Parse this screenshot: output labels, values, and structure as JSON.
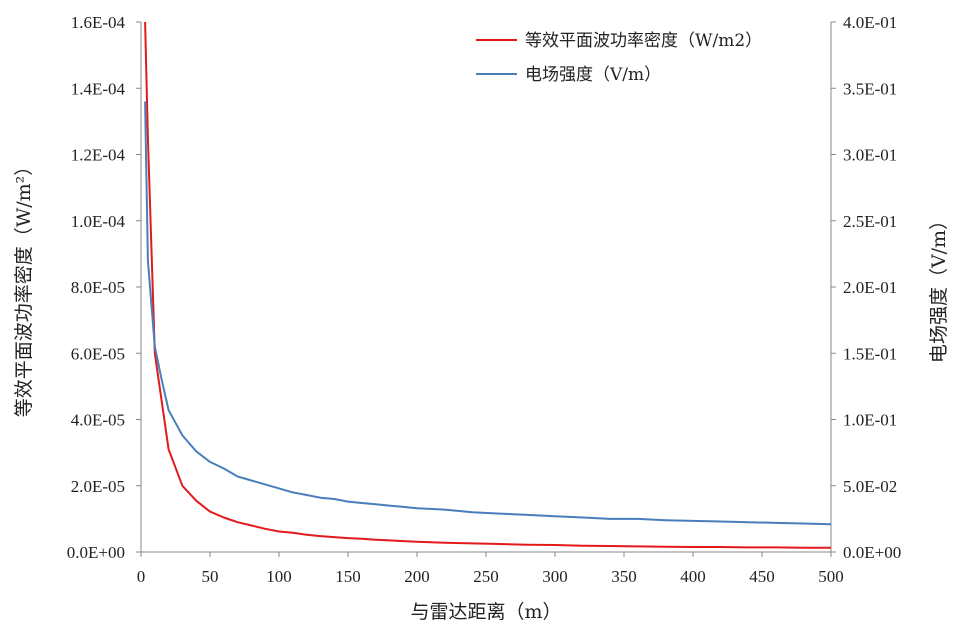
{
  "chart_data": {
    "type": "line",
    "xlabel": "与雷达距离（m）",
    "ylabel_left": "等效平面波功率密度（W/m²）",
    "ylabel_right": "电场强度（V/m）",
    "xlim": [
      0,
      500
    ],
    "ylim_left": [
      0,
      0.00016
    ],
    "ylim_right": [
      0,
      0.4
    ],
    "x_ticks": [
      0,
      50,
      100,
      150,
      200,
      250,
      300,
      350,
      400,
      450,
      500
    ],
    "x_tick_labels": [
      "0",
      "50",
      "100",
      "150",
      "200",
      "250",
      "300",
      "350",
      "400",
      "450",
      "500"
    ],
    "y_left_ticks": [
      0,
      2e-05,
      4e-05,
      6e-05,
      8e-05,
      0.0001,
      0.00012,
      0.00014,
      0.00016
    ],
    "y_left_tick_labels": [
      "0.0E+00",
      "2.0E-05",
      "4.0E-05",
      "6.0E-05",
      "8.0E-05",
      "1.0E-04",
      "1.2E-04",
      "1.4E-04",
      "1.6E-04"
    ],
    "y_right_ticks": [
      0,
      0.05,
      0.1,
      0.15,
      0.2,
      0.25,
      0.3,
      0.35,
      0.4
    ],
    "y_right_tick_labels": [
      "0.0E+00",
      "5.0E-02",
      "1.0E-01",
      "1.5E-01",
      "2.0E-01",
      "2.5E-01",
      "3.0E-01",
      "3.5E-01",
      "4.0E-01"
    ],
    "grid": false,
    "legend_position": "top-right",
    "series": [
      {
        "name": "等效平面波功率密度（W/m2）",
        "axis": "left",
        "color": "#e31a1c",
        "x": [
          3,
          5,
          10,
          20,
          30,
          40,
          50,
          60,
          70,
          80,
          90,
          100,
          110,
          120,
          130,
          140,
          150,
          160,
          170,
          180,
          190,
          200,
          220,
          240,
          260,
          280,
          300,
          320,
          340,
          360,
          380,
          400,
          420,
          440,
          460,
          480,
          500
        ],
        "values": [
          0.00016,
          0.000125,
          6e-05,
          3.1e-05,
          2e-05,
          1.55e-05,
          1.22e-05,
          1.04e-05,
          9e-06,
          8e-06,
          7e-06,
          6.2e-06,
          5.8e-06,
          5.2e-06,
          4.8e-06,
          4.5e-06,
          4.2e-06,
          4e-06,
          3.7e-06,
          3.5e-06,
          3.3e-06,
          3.1e-06,
          2.8e-06,
          2.6e-06,
          2.4e-06,
          2.2e-06,
          2.1e-06,
          1.9e-06,
          1.8e-06,
          1.7e-06,
          1.6e-06,
          1.5e-06,
          1.5e-06,
          1.4e-06,
          1.4e-06,
          1.3e-06,
          1.3e-06
        ]
      },
      {
        "name": "电场强度（V/m）",
        "axis": "right",
        "color": "#4a7ebb",
        "x": [
          3,
          5,
          10,
          15,
          20,
          30,
          40,
          50,
          60,
          70,
          80,
          90,
          100,
          110,
          120,
          130,
          140,
          150,
          160,
          170,
          180,
          190,
          200,
          220,
          240,
          260,
          280,
          300,
          320,
          340,
          360,
          380,
          400,
          420,
          440,
          460,
          480,
          500
        ],
        "values": [
          0.34,
          0.22,
          0.155,
          0.13,
          0.107,
          0.088,
          0.076,
          0.068,
          0.063,
          0.057,
          0.054,
          0.051,
          0.048,
          0.045,
          0.043,
          0.041,
          0.04,
          0.038,
          0.037,
          0.036,
          0.035,
          0.034,
          0.033,
          0.032,
          0.03,
          0.029,
          0.028,
          0.027,
          0.026,
          0.025,
          0.025,
          0.024,
          0.0235,
          0.023,
          0.0225,
          0.022,
          0.0215,
          0.021
        ]
      }
    ]
  }
}
